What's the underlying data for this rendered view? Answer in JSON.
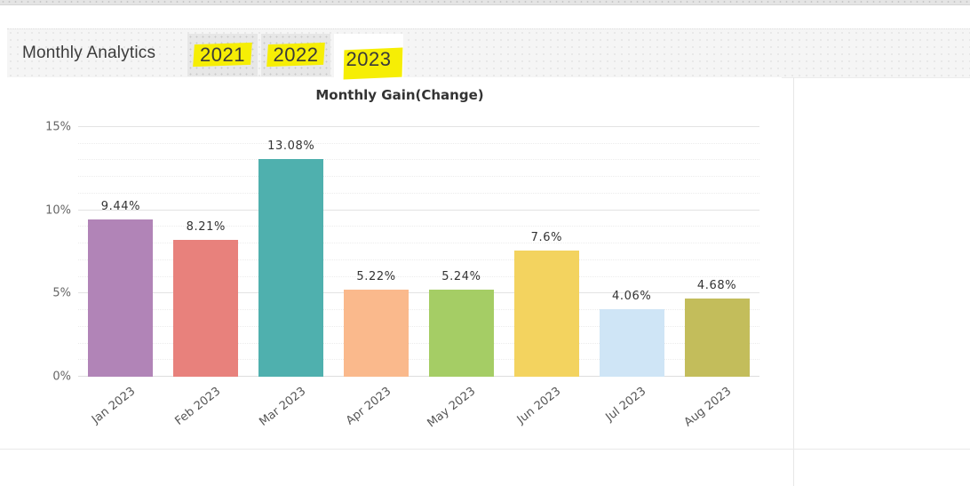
{
  "header": {
    "title": "Monthly Analytics",
    "tabs": [
      {
        "label": "2021",
        "active": false
      },
      {
        "label": "2022",
        "active": false
      },
      {
        "label": "2023",
        "active": true
      }
    ],
    "highlight_color": "#f6ee05"
  },
  "chart_data": {
    "type": "bar",
    "title": "Monthly Gain(Change)",
    "categories": [
      "Jan 2023",
      "Feb 2023",
      "Mar 2023",
      "Apr 2023",
      "May 2023",
      "Jun 2023",
      "Jul 2023",
      "Aug 2023"
    ],
    "values": [
      9.44,
      8.21,
      13.08,
      5.22,
      5.24,
      7.6,
      4.06,
      4.68
    ],
    "value_labels": [
      "9.44%",
      "8.21%",
      "13.08%",
      "5.22%",
      "5.24%",
      "7.6%",
      "4.06%",
      "4.68%"
    ],
    "bar_colors": [
      "#b184b7",
      "#e8817c",
      "#4fb0ae",
      "#fab98c",
      "#a5cd65",
      "#f3d35f",
      "#cfe5f6",
      "#c3bd5b"
    ],
    "xlabel": "",
    "ylabel": "",
    "y_ticks": [
      {
        "value": 0,
        "label": "0%"
      },
      {
        "value": 5,
        "label": "5%"
      },
      {
        "value": 10,
        "label": "10%"
      },
      {
        "value": 15,
        "label": "15%"
      }
    ],
    "ylim": [
      0,
      15
    ],
    "minor_grid_step": 1,
    "grid": true,
    "legend": "none"
  }
}
